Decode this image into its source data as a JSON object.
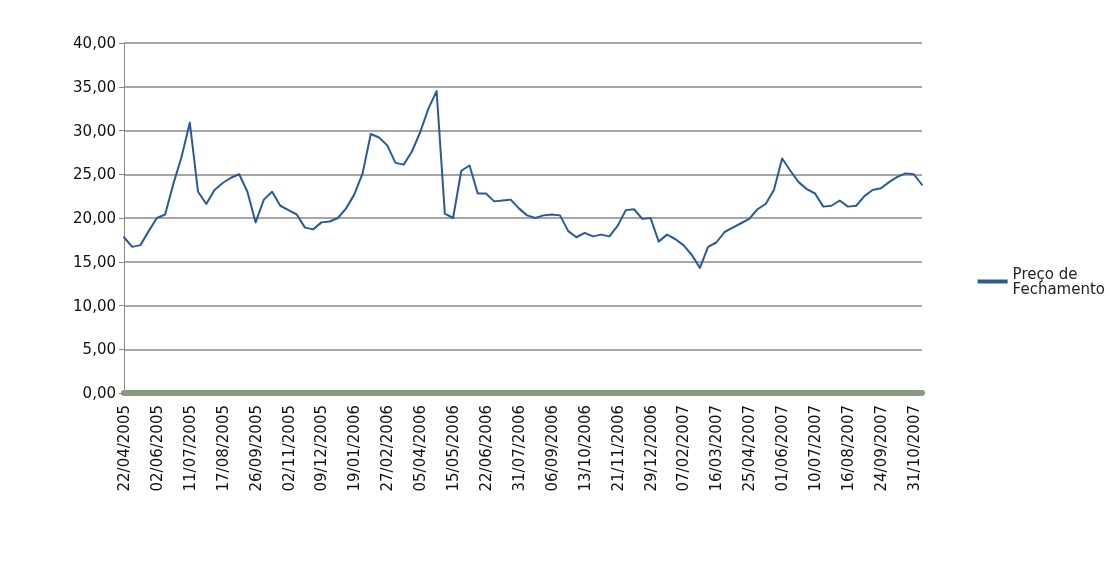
{
  "chart_data": {
    "type": "line",
    "categories": [
      "22/04/2005",
      null,
      null,
      null,
      "02/06/2005",
      null,
      null,
      null,
      "11/07/2005",
      null,
      null,
      null,
      "17/08/2005",
      null,
      null,
      null,
      "26/09/2005",
      null,
      null,
      null,
      "02/11/2005",
      null,
      null,
      null,
      "09/12/2005",
      null,
      null,
      null,
      "19/01/2006",
      null,
      null,
      null,
      "27/02/2006",
      null,
      null,
      null,
      "05/04/2006",
      null,
      null,
      null,
      "15/05/2006",
      null,
      null,
      null,
      "22/06/2006",
      null,
      null,
      null,
      "31/07/2006",
      null,
      null,
      null,
      "06/09/2006",
      null,
      null,
      null,
      "13/10/2006",
      null,
      null,
      null,
      "21/11/2006",
      null,
      null,
      null,
      "29/12/2006",
      null,
      null,
      null,
      "07/02/2007",
      null,
      null,
      null,
      "16/03/2007",
      null,
      null,
      null,
      "25/04/2007",
      null,
      null,
      null,
      "01/06/2007",
      null,
      null,
      null,
      "10/07/2007",
      null,
      null,
      null,
      "16/08/2007",
      null,
      null,
      null,
      "24/09/2007",
      null,
      null,
      null,
      "31/10/2007",
      null
    ],
    "series": [
      {
        "name": "Preço de Fechamento",
        "color": "#2a5a9a",
        "values": [
          17.8,
          16.7,
          16.9,
          18.5,
          20.0,
          20.4,
          23.9,
          27.0,
          30.9,
          23.0,
          21.6,
          23.2,
          24.0,
          24.6,
          25.0,
          23.0,
          19.5,
          22.1,
          23.0,
          21.4,
          20.9,
          20.4,
          18.9,
          18.7,
          19.5,
          19.6,
          20.0,
          21.1,
          22.7,
          25.1,
          29.6,
          29.2,
          28.3,
          26.3,
          26.1,
          27.6,
          29.8,
          32.5,
          34.5,
          20.5,
          20.0,
          25.4,
          26.0,
          22.8,
          22.8,
          21.9,
          22.0,
          22.1,
          21.1,
          20.3,
          20.0,
          20.3,
          20.4,
          20.3,
          18.5,
          17.8,
          18.3,
          17.9,
          18.1,
          17.9,
          19.1,
          20.9,
          21.0,
          19.9,
          20.0,
          17.3,
          18.1,
          17.6,
          16.9,
          15.8,
          14.3,
          16.7,
          17.2,
          18.4,
          18.9,
          19.4,
          19.9,
          21.0,
          21.6,
          23.2,
          26.8,
          25.4,
          24.1,
          23.3,
          22.8,
          21.3,
          21.4,
          22.0,
          21.3,
          21.4,
          22.5,
          23.2,
          23.4,
          24.1,
          24.7,
          25.1,
          25.0,
          23.8
        ]
      }
    ],
    "ylim": [
      0,
      40
    ],
    "yticks": [
      {
        "value": 0,
        "label": "0,00"
      },
      {
        "value": 5,
        "label": "5,00"
      },
      {
        "value": 10,
        "label": "10,00"
      },
      {
        "value": 15,
        "label": "15,00"
      },
      {
        "value": 20,
        "label": "20,00"
      },
      {
        "value": 25,
        "label": "25,00"
      },
      {
        "value": 30,
        "label": "30,00"
      },
      {
        "value": 35,
        "label": "35,00"
      },
      {
        "value": 40,
        "label": "40,00"
      }
    ],
    "grid": "y",
    "legend": "right",
    "marker": "none",
    "line_style": "solid"
  }
}
